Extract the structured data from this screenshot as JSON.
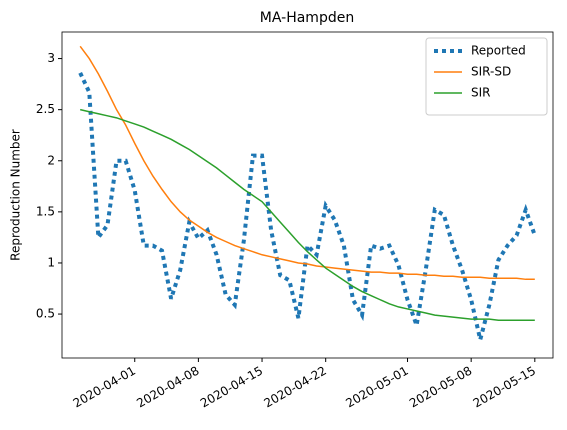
{
  "chart_data": {
    "type": "line",
    "title": "MA-Hampden",
    "y_label": "Reproduction Number",
    "x": [
      "2020-03-26",
      "2020-03-27",
      "2020-03-28",
      "2020-03-29",
      "2020-03-30",
      "2020-03-31",
      "2020-04-01",
      "2020-04-02",
      "2020-04-03",
      "2020-04-04",
      "2020-04-05",
      "2020-04-06",
      "2020-04-07",
      "2020-04-08",
      "2020-04-09",
      "2020-04-10",
      "2020-04-11",
      "2020-04-12",
      "2020-04-13",
      "2020-04-14",
      "2020-04-15",
      "2020-04-16",
      "2020-04-17",
      "2020-04-18",
      "2020-04-19",
      "2020-04-20",
      "2020-04-21",
      "2020-04-22",
      "2020-04-23",
      "2020-04-24",
      "2020-04-25",
      "2020-04-26",
      "2020-04-27",
      "2020-04-28",
      "2020-04-29",
      "2020-04-30",
      "2020-05-01",
      "2020-05-02",
      "2020-05-03",
      "2020-05-04",
      "2020-05-05",
      "2020-05-06",
      "2020-05-07",
      "2020-05-08",
      "2020-05-09",
      "2020-05-10",
      "2020-05-11",
      "2020-05-12",
      "2020-05-13",
      "2020-05-14",
      "2020-05-15"
    ],
    "series": [
      {
        "name": "Reported",
        "color": "#1f77b4",
        "style": "dotted",
        "values": [
          2.86,
          2.67,
          1.25,
          1.37,
          2.0,
          2.0,
          1.71,
          1.17,
          1.17,
          1.12,
          0.65,
          0.93,
          1.4,
          1.24,
          1.32,
          1.08,
          0.69,
          0.59,
          1.22,
          2.05,
          2.05,
          1.32,
          0.88,
          0.83,
          0.46,
          1.17,
          1.08,
          1.56,
          1.42,
          1.17,
          0.64,
          0.49,
          1.17,
          1.14,
          1.17,
          0.98,
          0.64,
          0.39,
          0.93,
          1.52,
          1.47,
          1.17,
          0.93,
          0.64,
          0.25,
          0.59,
          1.03,
          1.17,
          1.27,
          1.52,
          1.27
        ]
      },
      {
        "name": "SIR-SD",
        "color": "#ff7f0e",
        "style": "solid",
        "values": [
          3.12,
          3.0,
          2.85,
          2.68,
          2.5,
          2.35,
          2.17,
          2.0,
          1.85,
          1.72,
          1.6,
          1.5,
          1.42,
          1.36,
          1.3,
          1.25,
          1.21,
          1.17,
          1.14,
          1.11,
          1.08,
          1.06,
          1.04,
          1.02,
          1.0,
          0.99,
          0.97,
          0.96,
          0.95,
          0.94,
          0.93,
          0.92,
          0.91,
          0.91,
          0.9,
          0.9,
          0.89,
          0.89,
          0.88,
          0.88,
          0.87,
          0.87,
          0.86,
          0.86,
          0.86,
          0.85,
          0.85,
          0.85,
          0.85,
          0.84,
          0.84
        ]
      },
      {
        "name": "SIR",
        "color": "#2ca02c",
        "style": "solid",
        "values": [
          2.5,
          2.48,
          2.46,
          2.44,
          2.42,
          2.39,
          2.36,
          2.33,
          2.29,
          2.25,
          2.21,
          2.16,
          2.11,
          2.05,
          1.99,
          1.93,
          1.86,
          1.79,
          1.72,
          1.66,
          1.6,
          1.5,
          1.4,
          1.3,
          1.2,
          1.11,
          1.03,
          0.95,
          0.89,
          0.83,
          0.77,
          0.72,
          0.68,
          0.64,
          0.6,
          0.57,
          0.55,
          0.53,
          0.51,
          0.49,
          0.48,
          0.47,
          0.46,
          0.45,
          0.45,
          0.45,
          0.44,
          0.44,
          0.44,
          0.44,
          0.44
        ]
      }
    ],
    "xlim": [
      "2020-03-24",
      "2020-05-17"
    ],
    "xticks": [
      "2020-04-01",
      "2020-04-08",
      "2020-04-15",
      "2020-04-22",
      "2020-05-01",
      "2020-05-08",
      "2020-05-15"
    ],
    "ylim": [
      0.07,
      3.26
    ],
    "yticks": [
      0.5,
      1.0,
      1.5,
      2.0,
      2.5,
      3.0
    ],
    "legend": "upper right"
  }
}
